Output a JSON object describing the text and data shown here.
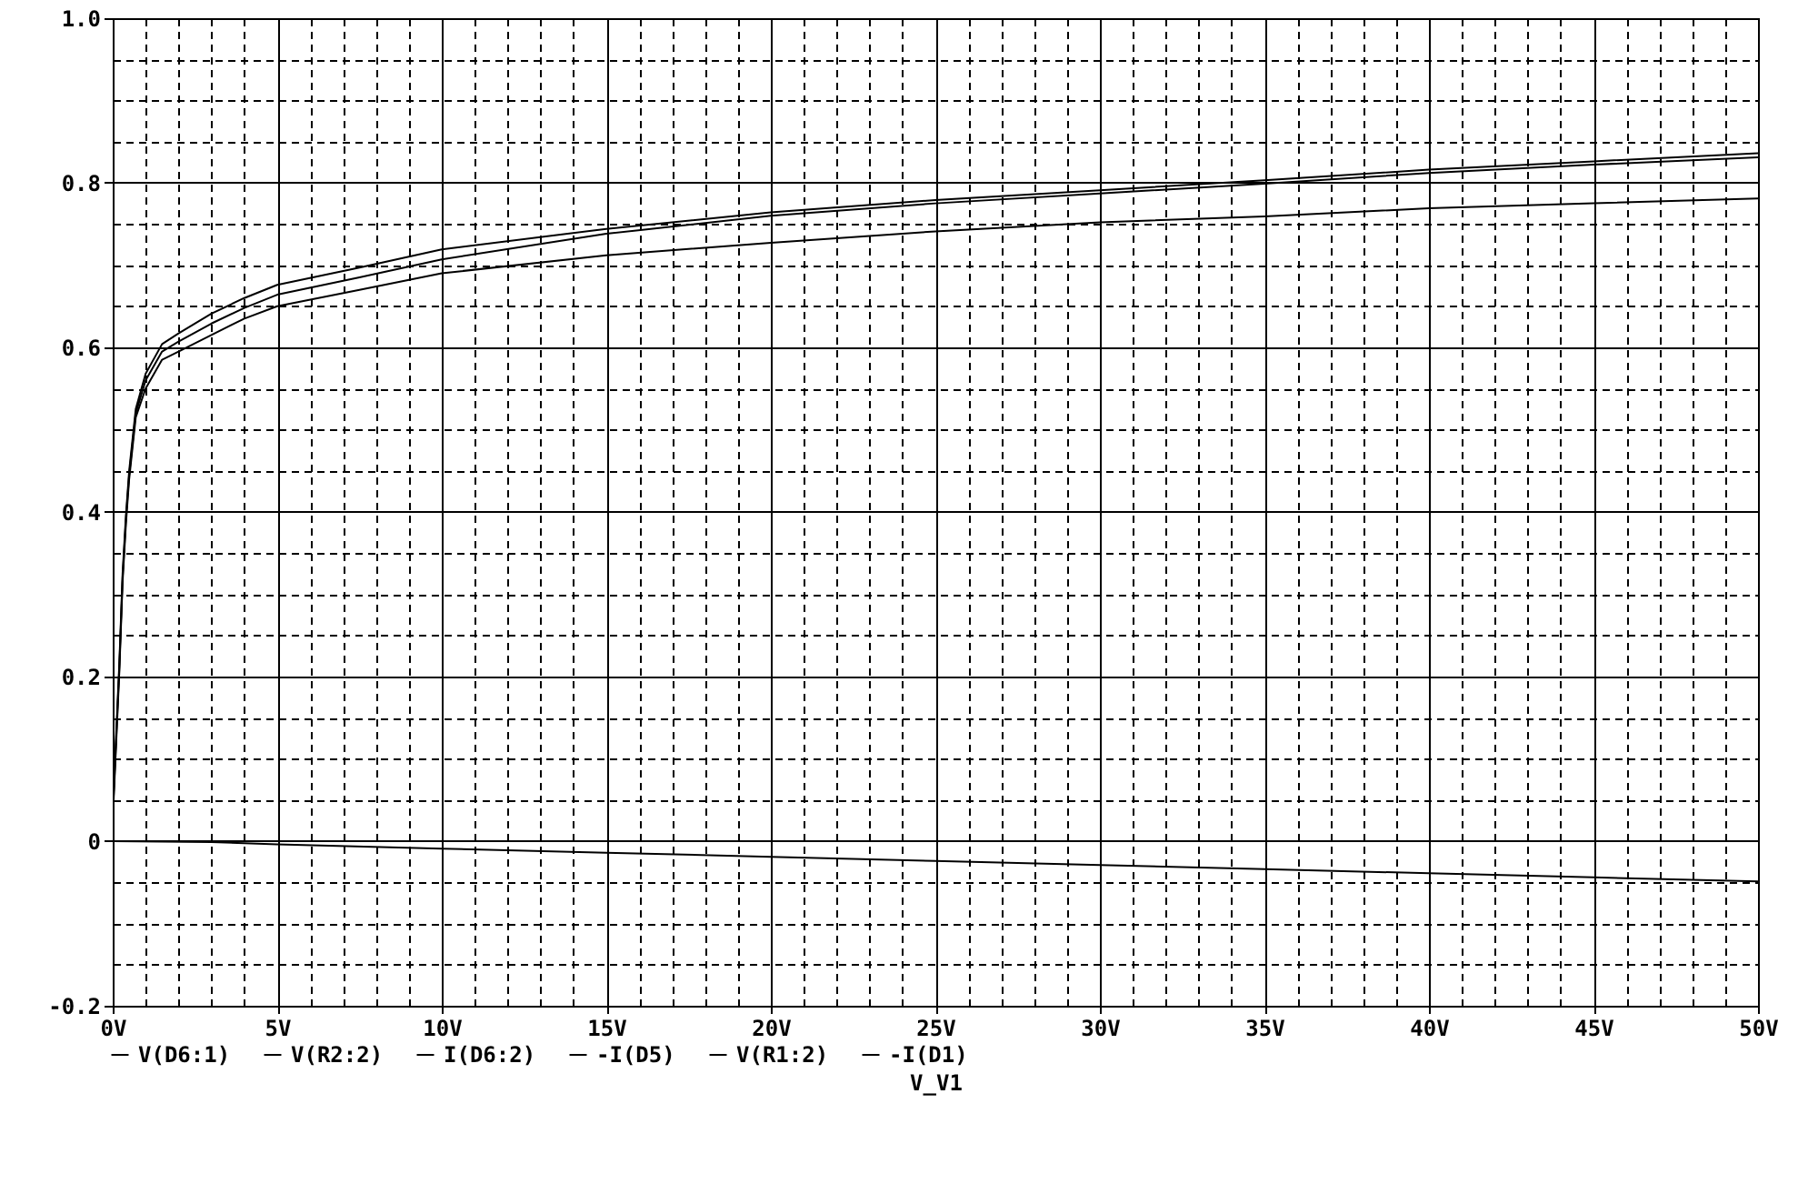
{
  "chart_data": {
    "type": "line",
    "xlabel": "V_V1",
    "x": [
      0,
      0.1,
      0.2,
      0.3,
      0.4,
      0.5,
      0.7,
      1,
      1.5,
      2,
      3,
      4,
      5,
      7.5,
      10,
      15,
      20,
      25,
      30,
      35,
      40,
      45,
      50
    ],
    "series": [
      {
        "name": "V(D6:1)",
        "color": "#000000",
        "values": [
          0.035,
          0.125,
          0.215,
          0.325,
          0.395,
          0.45,
          0.525,
          0.568,
          0.604,
          0.617,
          0.641,
          0.66,
          0.676,
          0.697,
          0.719,
          0.744,
          0.764,
          0.779,
          0.791,
          0.803,
          0.816,
          0.826,
          0.836
        ]
      },
      {
        "name": "V(R2:2)",
        "color": "#000000",
        "values": [
          0.03,
          0.12,
          0.21,
          0.32,
          0.39,
          0.445,
          0.52,
          0.56,
          0.595,
          0.607,
          0.629,
          0.648,
          0.664,
          0.685,
          0.707,
          0.738,
          0.76,
          0.775,
          0.787,
          0.799,
          0.812,
          0.822,
          0.831
        ]
      },
      {
        "name": "I(D6:2)",
        "color": "#000000",
        "values": [
          null,
          null,
          null,
          null,
          null,
          null,
          null,
          null,
          null,
          null,
          null,
          null,
          null,
          null,
          null,
          null,
          null,
          null,
          null,
          null,
          null,
          null,
          null
        ]
      },
      {
        "name": "-I(D5)",
        "color": "#000000",
        "values": [
          null,
          null,
          null,
          null,
          null,
          null,
          null,
          null,
          null,
          null,
          null,
          null,
          null,
          null,
          null,
          null,
          null,
          null,
          null,
          null,
          null,
          null,
          null
        ]
      },
      {
        "name": "V(R1:2)",
        "color": "#000000",
        "values": [
          0.025,
          0.115,
          0.205,
          0.315,
          0.385,
          0.44,
          0.515,
          0.55,
          0.585,
          0.595,
          0.615,
          0.635,
          0.65,
          0.67,
          0.69,
          0.712,
          0.727,
          0.741,
          0.752,
          0.759,
          0.769,
          0.775,
          0.781
        ]
      },
      {
        "name": "-I(D1)",
        "color": "#000000",
        "x": [
          0,
          3,
          5,
          10,
          15,
          20,
          25,
          30,
          35,
          40,
          45,
          50
        ],
        "values": [
          0,
          -0.001,
          -0.004,
          -0.009,
          -0.014,
          -0.019,
          -0.024,
          -0.029,
          -0.034,
          -0.039,
          -0.044,
          -0.049
        ]
      }
    ],
    "xlim": [
      0,
      50
    ],
    "ylim": [
      -0.2,
      1.0
    ],
    "xticks": [
      {
        "value": 0,
        "label": "0V"
      },
      {
        "value": 1,
        "label": null
      },
      {
        "value": 2,
        "label": null
      },
      {
        "value": 3,
        "label": null
      },
      {
        "value": 4,
        "label": null
      },
      {
        "value": 5,
        "label": "5V"
      },
      {
        "value": 6,
        "label": null
      },
      {
        "value": 7,
        "label": null
      },
      {
        "value": 8,
        "label": null
      },
      {
        "value": 9,
        "label": null
      },
      {
        "value": 10,
        "label": "10V"
      },
      {
        "value": 11,
        "label": null
      },
      {
        "value": 12,
        "label": null
      },
      {
        "value": 13,
        "label": null
      },
      {
        "value": 14,
        "label": null
      },
      {
        "value": 15,
        "label": "15V"
      },
      {
        "value": 16,
        "label": null
      },
      {
        "value": 17,
        "label": null
      },
      {
        "value": 18,
        "label": null
      },
      {
        "value": 19,
        "label": null
      },
      {
        "value": 20,
        "label": "20V"
      },
      {
        "value": 21,
        "label": null
      },
      {
        "value": 22,
        "label": null
      },
      {
        "value": 23,
        "label": null
      },
      {
        "value": 24,
        "label": null
      },
      {
        "value": 25,
        "label": "25V"
      },
      {
        "value": 26,
        "label": null
      },
      {
        "value": 27,
        "label": null
      },
      {
        "value": 28,
        "label": null
      },
      {
        "value": 29,
        "label": null
      },
      {
        "value": 30,
        "label": "30V"
      },
      {
        "value": 31,
        "label": null
      },
      {
        "value": 32,
        "label": null
      },
      {
        "value": 33,
        "label": null
      },
      {
        "value": 34,
        "label": null
      },
      {
        "value": 35,
        "label": "35V"
      },
      {
        "value": 36,
        "label": null
      },
      {
        "value": 37,
        "label": null
      },
      {
        "value": 38,
        "label": null
      },
      {
        "value": 39,
        "label": null
      },
      {
        "value": 40,
        "label": "40V"
      },
      {
        "value": 41,
        "label": null
      },
      {
        "value": 42,
        "label": null
      },
      {
        "value": 43,
        "label": null
      },
      {
        "value": 44,
        "label": null
      },
      {
        "value": 45,
        "label": "45V"
      },
      {
        "value": 46,
        "label": null
      },
      {
        "value": 47,
        "label": null
      },
      {
        "value": 48,
        "label": null
      },
      {
        "value": 49,
        "label": null
      },
      {
        "value": 50,
        "label": "50V"
      }
    ],
    "yticks": [
      -0.2,
      {
        "value": -0.15,
        "label": null
      },
      {
        "value": -0.1,
        "label": null
      },
      {
        "value": -0.05,
        "label": null
      },
      0,
      {
        "value": 0.05,
        "label": null
      },
      {
        "value": 0.1,
        "label": null
      },
      {
        "value": 0.15,
        "label": null
      },
      0.2,
      {
        "value": 0.25,
        "label": null
      },
      {
        "value": 0.3,
        "label": null
      },
      {
        "value": 0.35,
        "label": null
      },
      0.4,
      {
        "value": 0.45,
        "label": null
      },
      {
        "value": 0.5,
        "label": null
      },
      {
        "value": 0.55,
        "label": null
      },
      0.6,
      {
        "value": 0.65,
        "label": null
      },
      {
        "value": 0.7,
        "label": null
      },
      {
        "value": 0.75,
        "label": null
      },
      0.8,
      {
        "value": 0.85,
        "label": null
      },
      {
        "value": 0.9,
        "label": null
      },
      {
        "value": 0.95,
        "label": null
      },
      {
        "value": 1,
        "label": "1.0"
      }
    ],
    "grid": true,
    "legend": "bottom"
  }
}
